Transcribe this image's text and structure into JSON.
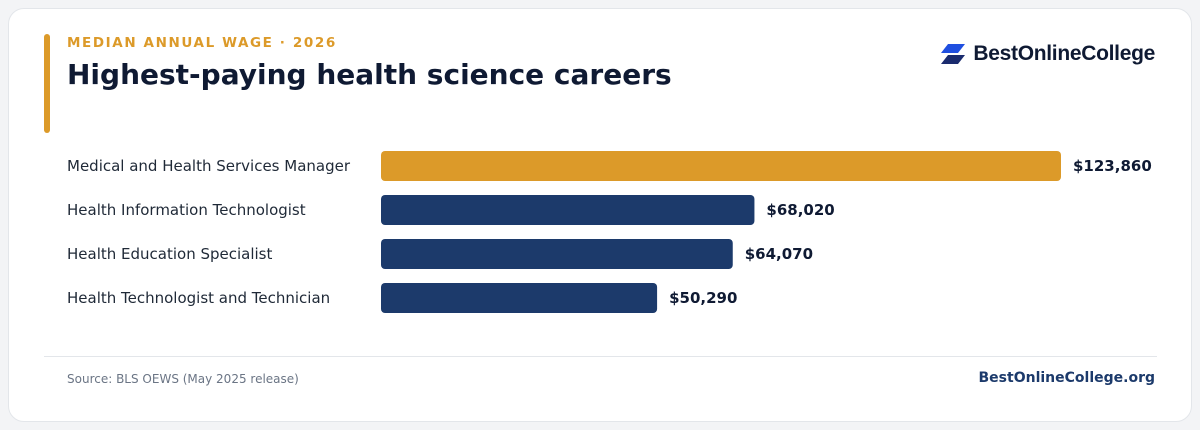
{
  "header": {
    "eyebrow": "MEDIAN ANNUAL WAGE · 2026",
    "title": "Highest-paying health science careers"
  },
  "brand": {
    "logo_text": "BestOnlineCollege",
    "logo_icon": "stacked-parallelogram-icon",
    "site_url": "BestOnlineCollege.org"
  },
  "footer": {
    "source": "Source: BLS OEWS (May 2025 release)"
  },
  "colors": {
    "highlight": "#dc9a29",
    "bar": "#1c3a6b",
    "logo_blue": "#1f4fe0"
  },
  "chart_data": {
    "type": "bar",
    "orientation": "horizontal",
    "categories": [
      "Medical and Health Services Manager",
      "Health Information Technologist",
      "Health Education Specialist",
      "Health Technologist and Technician"
    ],
    "values": [
      123860,
      68020,
      64070,
      50290
    ],
    "value_labels": [
      "$123,860",
      "$68,020",
      "$64,070",
      "$50,290"
    ],
    "highlight_index": 0,
    "xlim": [
      0,
      123860
    ],
    "grid": false,
    "legend": "none"
  }
}
